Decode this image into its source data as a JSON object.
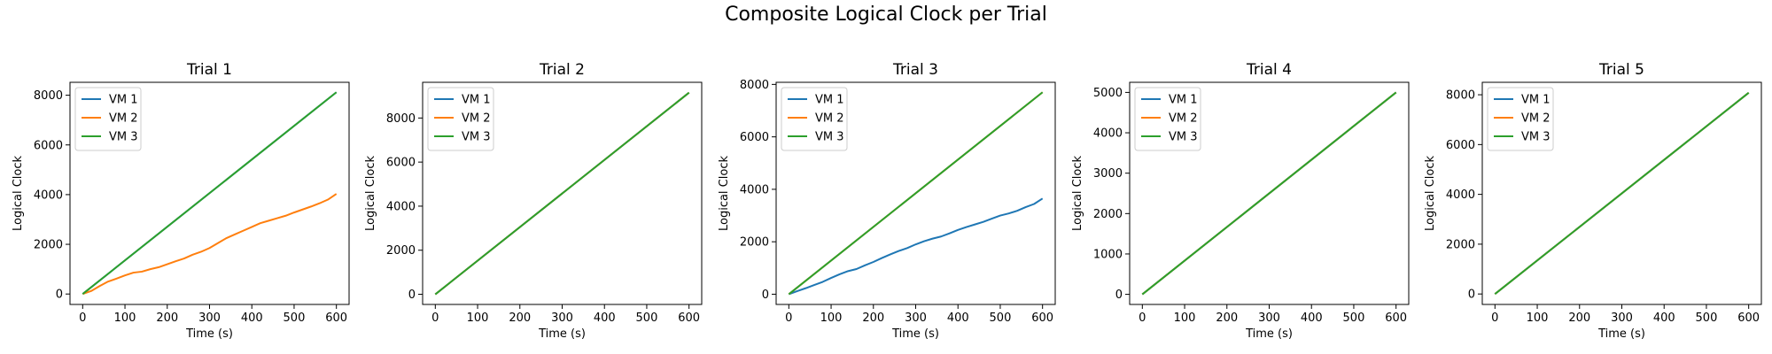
{
  "figure": {
    "title": "Composite Logical Clock per Trial"
  },
  "chart_data": [
    {
      "type": "line",
      "title": "Trial 1",
      "xlabel": "Time (s)",
      "ylabel": "Logical Clock",
      "xlim": [
        -30,
        630
      ],
      "ylim": [
        -420,
        8520
      ],
      "xticks": [
        0,
        100,
        200,
        300,
        400,
        500,
        600
      ],
      "yticks": [
        0,
        2000,
        4000,
        6000,
        8000
      ],
      "legend": "upper-left",
      "grid": false,
      "series": [
        {
          "name": "VM 1",
          "color": "#1f77b4",
          "x": [
            0,
            600
          ],
          "y": [
            0,
            8120
          ]
        },
        {
          "name": "VM 2",
          "color": "#ff7f0e",
          "x": [
            0,
            20,
            40,
            60,
            80,
            100,
            120,
            140,
            160,
            180,
            200,
            220,
            240,
            260,
            280,
            300,
            320,
            340,
            360,
            380,
            400,
            420,
            440,
            460,
            480,
            500,
            520,
            540,
            560,
            580,
            600
          ],
          "y": [
            0,
            120,
            320,
            500,
            620,
            750,
            860,
            900,
            1000,
            1080,
            1200,
            1320,
            1430,
            1580,
            1700,
            1850,
            2050,
            2250,
            2400,
            2550,
            2700,
            2850,
            2950,
            3050,
            3150,
            3280,
            3400,
            3520,
            3650,
            3800,
            4030
          ]
        },
        {
          "name": "VM 3",
          "color": "#2ca02c",
          "x": [
            0,
            600
          ],
          "y": [
            0,
            8120
          ]
        }
      ]
    },
    {
      "type": "line",
      "title": "Trial 2",
      "xlabel": "Time (s)",
      "ylabel": "Logical Clock",
      "xlim": [
        -30,
        630
      ],
      "ylim": [
        -460,
        9620
      ],
      "xticks": [
        0,
        100,
        200,
        300,
        400,
        500,
        600
      ],
      "yticks": [
        0,
        2000,
        4000,
        6000,
        8000
      ],
      "legend": "upper-left",
      "grid": false,
      "series": [
        {
          "name": "VM 1",
          "color": "#1f77b4",
          "x": [
            0,
            600
          ],
          "y": [
            0,
            9150
          ]
        },
        {
          "name": "VM 2",
          "color": "#ff7f0e",
          "x": [
            0,
            600
          ],
          "y": [
            0,
            9150
          ]
        },
        {
          "name": "VM 3",
          "color": "#2ca02c",
          "x": [
            0,
            600
          ],
          "y": [
            0,
            9150
          ]
        }
      ]
    },
    {
      "type": "line",
      "title": "Trial 3",
      "xlabel": "Time (s)",
      "ylabel": "Logical Clock",
      "xlim": [
        -30,
        630
      ],
      "ylim": [
        -390,
        8080
      ],
      "xticks": [
        0,
        100,
        200,
        300,
        400,
        500,
        600
      ],
      "yticks": [
        0,
        2000,
        4000,
        6000,
        8000
      ],
      "legend": "upper-left",
      "grid": false,
      "series": [
        {
          "name": "VM 1",
          "color": "#1f77b4",
          "x": [
            0,
            20,
            40,
            60,
            80,
            100,
            120,
            140,
            160,
            180,
            200,
            220,
            240,
            260,
            280,
            300,
            320,
            340,
            360,
            380,
            400,
            420,
            440,
            460,
            480,
            500,
            520,
            540,
            560,
            580,
            600
          ],
          "y": [
            0,
            120,
            230,
            350,
            470,
            620,
            760,
            880,
            960,
            1100,
            1230,
            1380,
            1520,
            1650,
            1760,
            1900,
            2020,
            2120,
            2200,
            2320,
            2450,
            2560,
            2660,
            2760,
            2880,
            3000,
            3080,
            3180,
            3320,
            3440,
            3650
          ]
        },
        {
          "name": "VM 2",
          "color": "#ff7f0e",
          "x": [
            0,
            600
          ],
          "y": [
            0,
            7700
          ]
        },
        {
          "name": "VM 3",
          "color": "#2ca02c",
          "x": [
            0,
            600
          ],
          "y": [
            0,
            7700
          ]
        }
      ]
    },
    {
      "type": "line",
      "title": "Trial 4",
      "xlabel": "Time (s)",
      "ylabel": "Logical Clock",
      "xlim": [
        -30,
        630
      ],
      "ylim": [
        -250,
        5250
      ],
      "xticks": [
        0,
        100,
        200,
        300,
        400,
        500,
        600
      ],
      "yticks": [
        0,
        1000,
        2000,
        3000,
        4000,
        5000
      ],
      "legend": "upper-left",
      "grid": false,
      "series": [
        {
          "name": "VM 1",
          "color": "#1f77b4",
          "x": [
            0,
            600
          ],
          "y": [
            0,
            5000
          ]
        },
        {
          "name": "VM 2",
          "color": "#ff7f0e",
          "x": [
            0,
            600
          ],
          "y": [
            0,
            5000
          ]
        },
        {
          "name": "VM 3",
          "color": "#2ca02c",
          "x": [
            0,
            600
          ],
          "y": [
            0,
            5000
          ]
        }
      ]
    },
    {
      "type": "line",
      "title": "Trial 5",
      "xlabel": "Time (s)",
      "ylabel": "Logical Clock",
      "xlim": [
        -30,
        630
      ],
      "ylim": [
        -420,
        8500
      ],
      "xticks": [
        0,
        100,
        200,
        300,
        400,
        500,
        600
      ],
      "yticks": [
        0,
        2000,
        4000,
        6000,
        8000
      ],
      "legend": "upper-left",
      "grid": false,
      "series": [
        {
          "name": "VM 1",
          "color": "#1f77b4",
          "x": [
            0,
            600
          ],
          "y": [
            0,
            8080
          ]
        },
        {
          "name": "VM 2",
          "color": "#ff7f0e",
          "x": [
            0,
            600
          ],
          "y": [
            0,
            8080
          ]
        },
        {
          "name": "VM 3",
          "color": "#2ca02c",
          "x": [
            0,
            600
          ],
          "y": [
            0,
            8080
          ]
        }
      ]
    }
  ]
}
